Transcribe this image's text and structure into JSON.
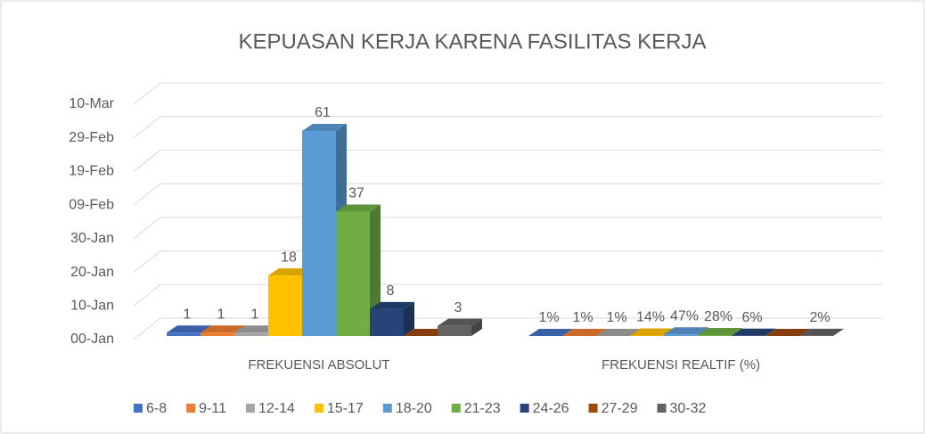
{
  "chart_data": {
    "type": "bar3d",
    "title": "KEPUASAN KERJA KARENA FASILITAS KERJA",
    "categories": [
      "FREKUENSI ABSOLUT",
      "FREKUENSI REALTIF (%)"
    ],
    "series": [
      {
        "name": "6-8",
        "color": "#4472c4",
        "values": [
          1,
          0.01
        ],
        "value_labels": [
          "1",
          "1%"
        ]
      },
      {
        "name": "9-11",
        "color": "#ed7d31",
        "values": [
          1,
          0.01
        ],
        "value_labels": [
          "1",
          "1%"
        ]
      },
      {
        "name": "12-14",
        "color": "#a5a5a5",
        "values": [
          1,
          0.01
        ],
        "value_labels": [
          "1",
          "1%"
        ]
      },
      {
        "name": "15-17",
        "color": "#ffc000",
        "values": [
          18,
          0.14
        ],
        "value_labels": [
          "18",
          "14%"
        ]
      },
      {
        "name": "18-20",
        "color": "#5b9bd5",
        "values": [
          61,
          0.47
        ],
        "value_labels": [
          "61",
          "47%"
        ]
      },
      {
        "name": "21-23",
        "color": "#70ad47",
        "values": [
          37,
          0.28
        ],
        "value_labels": [
          "37",
          "28%"
        ]
      },
      {
        "name": "24-26",
        "color": "#264478",
        "values": [
          8,
          0.06
        ],
        "value_labels": [
          "8",
          "6%"
        ]
      },
      {
        "name": "27-29",
        "color": "#9e480e",
        "values": [
          0,
          0
        ],
        "value_labels": [
          null,
          null
        ]
      },
      {
        "name": "30-32",
        "color": "#636363",
        "values": [
          3,
          0.02
        ],
        "value_labels": [
          "3",
          "2%"
        ]
      }
    ],
    "ylim": [
      0,
      70
    ],
    "yticks": [
      {
        "value": 0,
        "label": "00-Jan"
      },
      {
        "value": 10,
        "label": "10-Jan"
      },
      {
        "value": 20,
        "label": "20-Jan"
      },
      {
        "value": 30,
        "label": "30-Jan"
      },
      {
        "value": 40,
        "label": "09-Feb"
      },
      {
        "value": 50,
        "label": "19-Feb"
      },
      {
        "value": 60,
        "label": "29-Feb"
      },
      {
        "value": 70,
        "label": "10-Mar"
      }
    ],
    "grid": true,
    "legend": "bottom"
  }
}
